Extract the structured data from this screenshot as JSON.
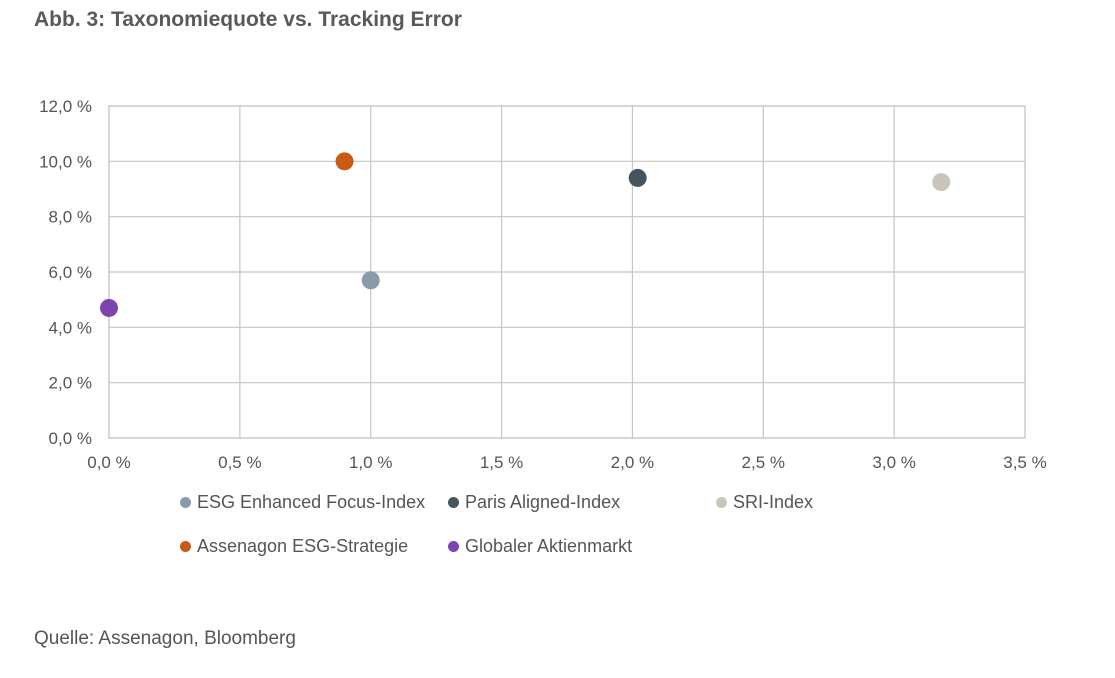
{
  "title": "Abb. 3: Taxonomiequote vs. Tracking Error",
  "source": "Quelle: Assenagon, Bloomberg",
  "chart_data": {
    "type": "scatter",
    "title": "Abb. 3: Taxonomiequote vs. Tracking Error",
    "xlabel": "",
    "ylabel": "",
    "xlim": [
      0,
      3.5
    ],
    "ylim": [
      0,
      12
    ],
    "x_ticks": [
      "0,0 %",
      "0,5 %",
      "1,0 %",
      "1,5 %",
      "2,0 %",
      "2,5 %",
      "3,0 %",
      "3,5 %"
    ],
    "y_ticks": [
      "0,0 %",
      "2,0 %",
      "4,0 %",
      "6,0 %",
      "8,0 %",
      "10,0 %",
      "12,0 %"
    ],
    "grid": true,
    "legend_position": "bottom",
    "series": [
      {
        "name": "ESG Enhanced Focus-Index",
        "color": "#8a9aa8",
        "x": 1.0,
        "y": 5.7
      },
      {
        "name": "Paris Aligned-Index",
        "color": "#46545e",
        "x": 2.02,
        "y": 9.4
      },
      {
        "name": "SRI-Index",
        "color": "#c9c5b9",
        "x": 3.18,
        "y": 9.25
      },
      {
        "name": "Assenagon ESG-Strategie",
        "color": "#c85a14",
        "x": 0.9,
        "y": 10.0
      },
      {
        "name": "Globaler Aktienmarkt",
        "color": "#7d44b0",
        "x": 0.0,
        "y": 4.7
      }
    ]
  }
}
